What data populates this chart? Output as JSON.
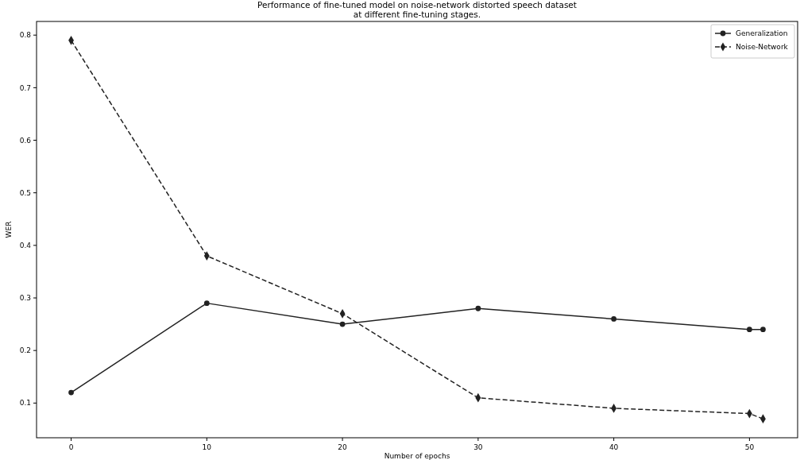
{
  "chart_data": {
    "type": "line",
    "title": "Performance of fine-tuned model on noise-network distorted speech dataset\nat different fine-tuning stages.",
    "xlabel": "Number of epochs",
    "ylabel": "WER",
    "x": [
      0,
      10,
      20,
      30,
      40,
      50,
      51
    ],
    "series": [
      {
        "name": "Generalization",
        "color": "#222222",
        "marker": "circle",
        "line_style": "solid",
        "values": [
          0.12,
          0.29,
          0.25,
          0.28,
          0.26,
          0.24,
          0.24
        ]
      },
      {
        "name": "Noise-Network",
        "color": "#222222",
        "marker": "diamond",
        "line_style": "dashed",
        "values": [
          0.79,
          0.38,
          0.27,
          0.11,
          0.09,
          0.08,
          0.07
        ]
      }
    ],
    "xlim": [
      -2.55,
      53.55
    ],
    "xticks": [
      0,
      10,
      20,
      30,
      40,
      50
    ],
    "ylim": [
      0.034,
      0.826
    ],
    "yticks": [
      0.1,
      0.2,
      0.3,
      0.4,
      0.5,
      0.6,
      0.7,
      0.8
    ],
    "legend": "top right",
    "grid": false
  }
}
